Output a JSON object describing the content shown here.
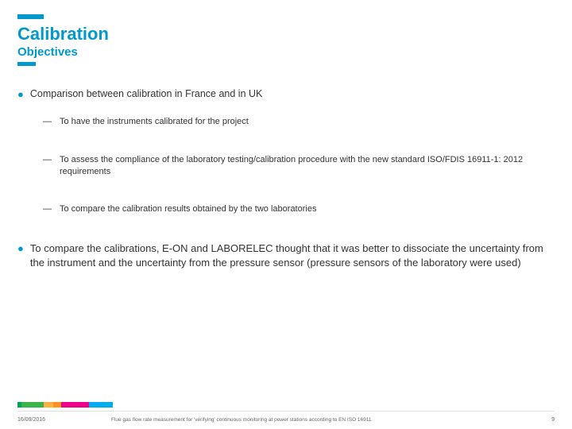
{
  "title": "Calibration",
  "subtitle": "Objectives",
  "mainBullet": "Comparison between calibration in France and in UK",
  "subBullets": [
    "To have the instruments calibrated for the project",
    "To assess the compliance of the laboratory testing/calibration procedure with the new standard ISO/FDIS 16911-1: 2012 requirements",
    "To compare the calibration results obtained by the two laboratories"
  ],
  "secondBullet": "To compare the calibrations, E-ON and LABORELEC thought that it was better to dissociate the uncertainty from the instrument and the uncertainty from the pressure sensor (pressure sensors of the laboratory were used)",
  "footer": {
    "date": "16/09/2016",
    "title": "Flue gas flow rate measurement for 'verifying' continuous monitoring at power stations according to EN ISO 16911",
    "page": "9"
  },
  "colors": {
    "accent": "#0099cc",
    "text": "#333333",
    "footerText": "#666666"
  }
}
